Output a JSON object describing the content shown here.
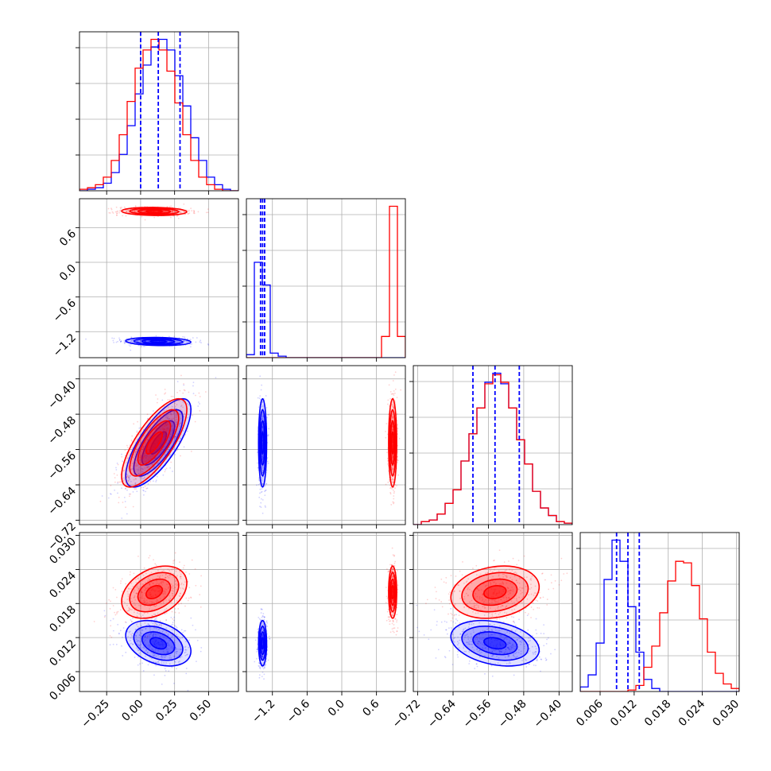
{
  "chart_data": {
    "type": "corner",
    "title": "",
    "grid": true,
    "legend": "none",
    "parameters": [
      {
        "range": [
          -0.45,
          0.72
        ],
        "ticks": [
          -0.25,
          0.0,
          0.25,
          0.5
        ],
        "tick_labels": [
          "−0.25",
          "0.00",
          "0.25",
          "0.50"
        ]
      },
      {
        "range": [
          -1.65,
          1.1
        ],
        "ticks": [
          -1.2,
          -0.6,
          0.0,
          0.6
        ],
        "tick_labels": [
          "−1.2",
          "−0.6",
          "0.0",
          "0.6"
        ]
      },
      {
        "range": [
          -0.73,
          -0.37
        ],
        "ticks": [
          -0.72,
          -0.64,
          -0.56,
          -0.48,
          -0.4
        ],
        "tick_labels": [
          "−0.72",
          "−0.64",
          "−0.56",
          "−0.48",
          "−0.40"
        ]
      },
      {
        "range": [
          0.0025,
          0.0305
        ],
        "ticks": [
          0.006,
          0.012,
          0.018,
          0.024,
          0.03
        ],
        "tick_labels": [
          "0.006",
          "0.012",
          "0.018",
          "0.024",
          "0.030"
        ]
      }
    ],
    "series": [
      {
        "color": "#0000ff",
        "centers": [
          0.13,
          -1.37,
          -0.545,
          0.011
        ],
        "sigmas": [
          0.12,
          0.035,
          0.05,
          0.002
        ],
        "correlations": [
          [
            0,
            1,
            -0.15
          ],
          [
            0,
            2,
            0.75
          ],
          [
            0,
            3,
            -0.35
          ],
          [
            1,
            2,
            0.0
          ],
          [
            1,
            3,
            0.0
          ],
          [
            2,
            3,
            -0.3
          ]
        ],
        "quantiles": [
          [
            0.0,
            0.13,
            0.29
          ],
          [
            -1.405,
            -1.37,
            -1.335
          ],
          [
            -0.595,
            -0.545,
            -0.49
          ],
          [
            0.0089,
            0.0109,
            0.0129
          ]
        ]
      },
      {
        "color": "#ff0000",
        "centers": [
          0.1,
          0.88,
          -0.545,
          0.02
        ],
        "sigmas": [
          0.12,
          0.035,
          0.05,
          0.0023
        ],
        "correlations": [
          [
            0,
            1,
            -0.1
          ],
          [
            0,
            2,
            0.75
          ],
          [
            0,
            3,
            0.35
          ],
          [
            1,
            2,
            0.0
          ],
          [
            1,
            3,
            0.0
          ],
          [
            2,
            3,
            0.2
          ]
        ]
      }
    ],
    "histograms": [
      {
        "edges": [
          -0.45,
          -0.3915,
          -0.333,
          -0.2745,
          -0.216,
          -0.1575,
          -0.099,
          -0.0405,
          0.018,
          0.0765,
          0.135,
          0.1935,
          0.252,
          0.3105,
          0.369,
          0.4275,
          0.486,
          0.5445,
          0.603,
          0.6615,
          0.72
        ],
        "ylim": [
          0,
          1.05
        ],
        "counts": [
          {
            "series": 0,
            "values": [
              0.0,
              0.01,
              0.02,
              0.05,
              0.12,
              0.24,
              0.43,
              0.64,
              0.83,
              0.95,
              1.0,
              0.93,
              0.76,
              0.56,
              0.35,
              0.2,
              0.09,
              0.04,
              0.01,
              0.0
            ]
          },
          {
            "series": 1,
            "values": [
              0.01,
              0.02,
              0.04,
              0.09,
              0.2,
              0.37,
              0.59,
              0.81,
              0.93,
              1.0,
              0.93,
              0.79,
              0.58,
              0.37,
              0.2,
              0.09,
              0.04,
              0.01,
              0.0,
              0.0
            ]
          }
        ]
      },
      {
        "edges": [
          -1.65,
          -1.5125,
          -1.375,
          -1.2375,
          -1.1,
          -0.9625,
          -0.825,
          -0.6875,
          -0.55,
          -0.4125,
          -0.275,
          -0.1375,
          0.0,
          0.1375,
          0.275,
          0.4125,
          0.55,
          0.6875,
          0.825,
          0.9625,
          1.1
        ],
        "ylim": [
          0,
          1.05
        ],
        "counts": [
          {
            "series": 0,
            "values": [
              0.02,
              0.63,
              0.48,
              0.03,
              0.01,
              0,
              0,
              0,
              0,
              0,
              0,
              0,
              0,
              0,
              0,
              0,
              0,
              0,
              0,
              0
            ]
          },
          {
            "series": 1,
            "values": [
              0,
              0,
              0,
              0,
              0,
              0,
              0,
              0,
              0,
              0,
              0,
              0,
              0,
              0,
              0,
              0,
              0,
              0.14,
              1.0,
              0.14
            ]
          }
        ]
      },
      {
        "edges": [
          -0.73,
          -0.712,
          -0.694,
          -0.676,
          -0.658,
          -0.64,
          -0.622,
          -0.604,
          -0.586,
          -0.568,
          -0.55,
          -0.532,
          -0.514,
          -0.496,
          -0.478,
          -0.46,
          -0.442,
          -0.424,
          -0.406,
          -0.388,
          -0.37
        ],
        "ylim": [
          0,
          1.05
        ],
        "counts": [
          {
            "series": 0,
            "values": [
              0.0,
              0.02,
              0.03,
              0.07,
              0.14,
              0.23,
              0.42,
              0.6,
              0.77,
              0.94,
              1.0,
              0.93,
              0.77,
              0.56,
              0.4,
              0.22,
              0.11,
              0.06,
              0.02,
              0.01
            ]
          },
          {
            "series": 1,
            "values": [
              0.0,
              0.02,
              0.03,
              0.07,
              0.14,
              0.23,
              0.42,
              0.6,
              0.77,
              0.93,
              0.99,
              0.94,
              0.77,
              0.56,
              0.4,
              0.22,
              0.11,
              0.06,
              0.02,
              0.01
            ]
          }
        ]
      },
      {
        "edges": [
          0.0025,
          0.0039,
          0.0053,
          0.0067,
          0.0081,
          0.0095,
          0.0109,
          0.0123,
          0.0137,
          0.0151,
          0.0165,
          0.0179,
          0.0193,
          0.0207,
          0.0221,
          0.0235,
          0.0249,
          0.0263,
          0.0277,
          0.0291,
          0.0305
        ],
        "ylim": [
          0,
          1.05
        ],
        "counts": [
          {
            "series": 0,
            "values": [
              0.03,
              0.11,
              0.32,
              0.74,
              1.0,
              0.86,
              0.56,
              0.26,
              0.08,
              0.02,
              0.0,
              0,
              0,
              0,
              0,
              0,
              0,
              0,
              0,
              0
            ]
          },
          {
            "series": 1,
            "values": [
              0,
              0,
              0,
              0,
              0,
              0,
              0.01,
              0.04,
              0.16,
              0.3,
              0.52,
              0.73,
              0.86,
              0.85,
              0.7,
              0.48,
              0.26,
              0.12,
              0.05,
              0.02
            ]
          }
        ]
      }
    ],
    "scatter_points_per_series": 450,
    "contour_levels_sigma": [
      0.5,
      1.0,
      1.5,
      2.0
    ]
  }
}
